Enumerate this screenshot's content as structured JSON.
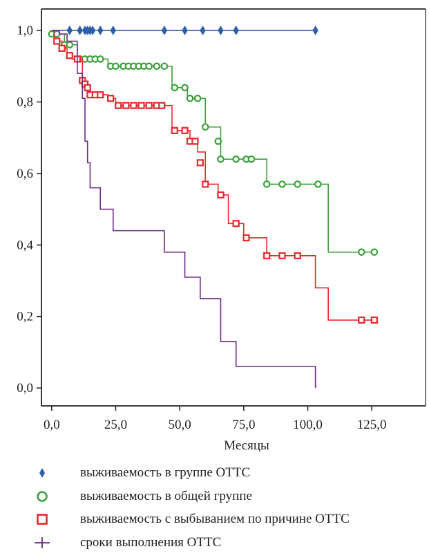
{
  "chart_data": {
    "type": "line",
    "title": "",
    "xlabel": "Месяцы",
    "ylabel": "",
    "xlim": [
      -4,
      146
    ],
    "ylim": [
      -0.05,
      1.06
    ],
    "xticks": [
      0,
      25,
      50,
      75,
      100,
      125
    ],
    "xtick_labels": [
      "0,0",
      "25,0",
      "50,0",
      "75,0",
      "100,0",
      "125,0"
    ],
    "yticks": [
      0,
      0.2,
      0.4,
      0.6,
      0.8,
      1.0
    ],
    "ytick_labels": [
      "0,0",
      "0,2",
      "0,4",
      "0,6",
      "0,8",
      "1,0"
    ],
    "grid": false,
    "legend_position": "bottom",
    "series": [
      {
        "name": "выживаемость в группе ОТТС",
        "color": "#2e5fa8",
        "marker": "diamond",
        "steps": [
          [
            0,
            1.0
          ],
          [
            103,
            1.0
          ]
        ],
        "censored": [
          [
            7,
            1.0
          ],
          [
            11,
            1.0
          ],
          [
            13,
            1.0
          ],
          [
            14,
            1.0
          ],
          [
            15,
            1.0
          ],
          [
            16,
            1.0
          ],
          [
            19,
            1.0
          ],
          [
            24,
            1.0
          ],
          [
            44,
            1.0
          ],
          [
            52,
            1.0
          ],
          [
            59,
            1.0
          ],
          [
            66,
            1.0
          ],
          [
            72,
            1.0
          ],
          [
            103,
            1.0
          ]
        ]
      },
      {
        "name": "выживаемость в общей группе",
        "color": "#3aa03a",
        "marker": "circle",
        "steps": [
          [
            0,
            1.0
          ],
          [
            1,
            0.99
          ],
          [
            5,
            0.96
          ],
          [
            10,
            0.92
          ],
          [
            22,
            0.9
          ],
          [
            47,
            0.84
          ],
          [
            53,
            0.81
          ],
          [
            60,
            0.73
          ],
          [
            66,
            0.64
          ],
          [
            84,
            0.57
          ],
          [
            108,
            0.38
          ],
          [
            126,
            0.38
          ]
        ],
        "censored": [
          [
            0,
            0.99
          ],
          [
            2,
            0.99
          ],
          [
            5,
            0.96
          ],
          [
            7,
            0.96
          ],
          [
            11,
            0.92
          ],
          [
            13,
            0.92
          ],
          [
            15,
            0.92
          ],
          [
            17,
            0.92
          ],
          [
            19,
            0.92
          ],
          [
            23,
            0.9
          ],
          [
            25,
            0.9
          ],
          [
            28,
            0.9
          ],
          [
            30,
            0.9
          ],
          [
            32,
            0.9
          ],
          [
            34,
            0.9
          ],
          [
            36,
            0.9
          ],
          [
            38,
            0.9
          ],
          [
            41,
            0.9
          ],
          [
            44,
            0.9
          ],
          [
            48,
            0.84
          ],
          [
            52,
            0.84
          ],
          [
            54,
            0.81
          ],
          [
            57,
            0.81
          ],
          [
            60,
            0.73
          ],
          [
            65,
            0.69
          ],
          [
            66,
            0.64
          ],
          [
            72,
            0.64
          ],
          [
            76,
            0.64
          ],
          [
            78,
            0.64
          ],
          [
            84,
            0.57
          ],
          [
            90,
            0.57
          ],
          [
            96,
            0.57
          ],
          [
            104,
            0.57
          ],
          [
            121,
            0.38
          ],
          [
            126,
            0.38
          ]
        ]
      },
      {
        "name": "выживаемость с выбыванием по причине ОТТС",
        "color": "#e8262b",
        "marker": "square",
        "steps": [
          [
            0,
            1.0
          ],
          [
            1,
            0.97
          ],
          [
            4,
            0.95
          ],
          [
            6,
            0.93
          ],
          [
            8,
            0.92
          ],
          [
            12,
            0.86
          ],
          [
            13,
            0.84
          ],
          [
            14,
            0.82
          ],
          [
            22,
            0.81
          ],
          [
            25,
            0.79
          ],
          [
            47,
            0.72
          ],
          [
            54,
            0.69
          ],
          [
            57,
            0.66
          ],
          [
            60,
            0.57
          ],
          [
            65,
            0.54
          ],
          [
            69,
            0.46
          ],
          [
            75,
            0.42
          ],
          [
            84,
            0.37
          ],
          [
            103,
            0.28
          ],
          [
            108,
            0.19
          ],
          [
            126,
            0.19
          ]
        ],
        "censored": [
          [
            2,
            0.97
          ],
          [
            4,
            0.95
          ],
          [
            7,
            0.93
          ],
          [
            10,
            0.92
          ],
          [
            12,
            0.86
          ],
          [
            13,
            0.85
          ],
          [
            14,
            0.84
          ],
          [
            15,
            0.82
          ],
          [
            17,
            0.82
          ],
          [
            19,
            0.82
          ],
          [
            23,
            0.81
          ],
          [
            26,
            0.79
          ],
          [
            29,
            0.79
          ],
          [
            32,
            0.79
          ],
          [
            35,
            0.79
          ],
          [
            38,
            0.79
          ],
          [
            41,
            0.79
          ],
          [
            43,
            0.79
          ],
          [
            48,
            0.72
          ],
          [
            52,
            0.72
          ],
          [
            54,
            0.69
          ],
          [
            56,
            0.69
          ],
          [
            58,
            0.63
          ],
          [
            60,
            0.57
          ],
          [
            66,
            0.54
          ],
          [
            72,
            0.46
          ],
          [
            76,
            0.42
          ],
          [
            84,
            0.37
          ],
          [
            90,
            0.37
          ],
          [
            96,
            0.37
          ],
          [
            121,
            0.19
          ],
          [
            126,
            0.19
          ]
        ]
      },
      {
        "name": "сроки выполнения ОТТС",
        "color": "#6c2a86",
        "marker": "plus",
        "steps": [
          [
            0,
            1.0
          ],
          [
            3,
            0.99
          ],
          [
            6,
            0.97
          ],
          [
            10,
            0.88
          ],
          [
            12,
            0.81
          ],
          [
            13,
            0.69
          ],
          [
            14,
            0.63
          ],
          [
            15,
            0.56
          ],
          [
            19,
            0.5
          ],
          [
            24,
            0.44
          ],
          [
            44,
            0.38
          ],
          [
            52,
            0.31
          ],
          [
            58,
            0.25
          ],
          [
            66,
            0.13
          ],
          [
            72,
            0.06
          ],
          [
            103,
            0.0
          ]
        ],
        "censored": []
      }
    ]
  }
}
